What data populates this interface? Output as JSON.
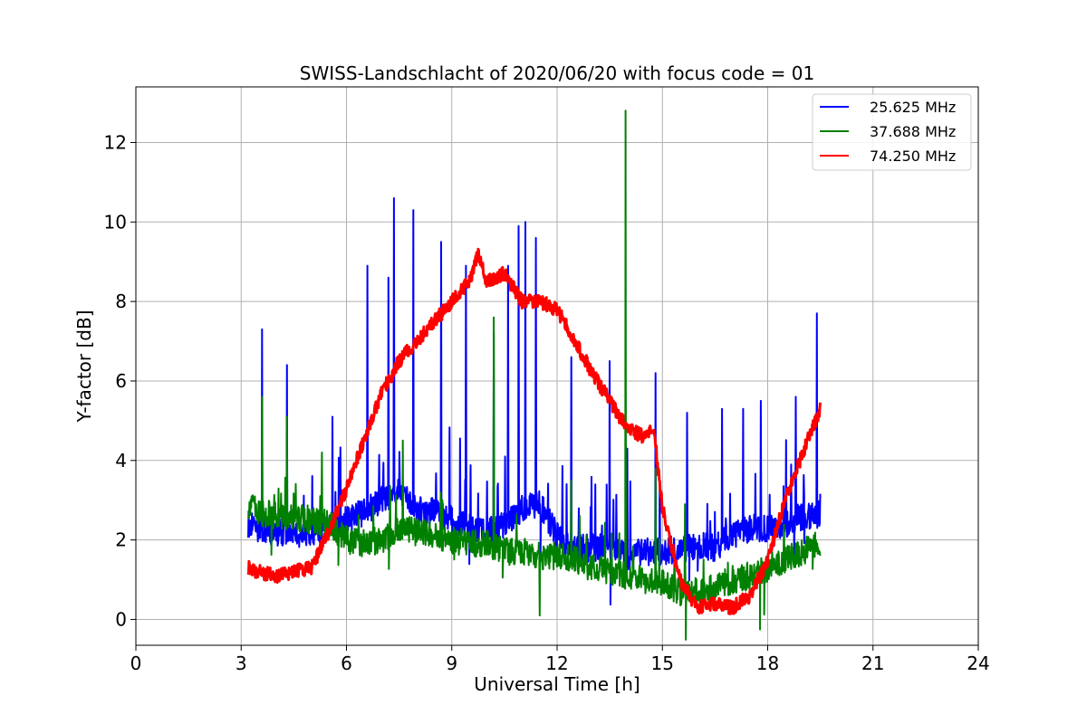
{
  "chart_data": {
    "type": "line",
    "title": "SWISS-Landschlacht of 2020/06/20 with focus code = 01",
    "xlabel": "Universal Time [h]",
    "ylabel": "Y-factor [dB]",
    "xlim": [
      0,
      24
    ],
    "ylim": [
      -0.65,
      13.4
    ],
    "xticks": [
      0,
      3,
      6,
      9,
      12,
      15,
      18,
      21,
      24
    ],
    "yticks": [
      0,
      2,
      4,
      6,
      8,
      10,
      12
    ],
    "grid": true,
    "legend_position": "top-right",
    "series": [
      {
        "name": "25.625 MHz",
        "color": "#0000ff",
        "x": [
          3.2,
          3.5,
          4.0,
          4.5,
          5.0,
          5.5,
          6.0,
          6.5,
          7.0,
          7.5,
          8.0,
          8.5,
          9.0,
          9.5,
          10.0,
          10.5,
          11.0,
          11.5,
          12.0,
          12.5,
          13.0,
          13.5,
          14.0,
          14.5,
          15.0,
          15.5,
          16.0,
          16.5,
          17.0,
          17.5,
          18.0,
          18.5,
          19.0,
          19.5
        ],
        "values": [
          2.4,
          2.3,
          2.2,
          2.2,
          2.1,
          2.3,
          2.5,
          2.7,
          3.0,
          3.2,
          2.8,
          2.7,
          2.5,
          2.3,
          2.2,
          2.4,
          2.8,
          2.9,
          2.1,
          1.8,
          1.8,
          1.8,
          1.6,
          1.7,
          1.7,
          1.7,
          1.9,
          1.8,
          2.1,
          2.3,
          2.3,
          2.4,
          2.6,
          2.5
        ],
        "spikes": [
          [
            3.6,
            7.3
          ],
          [
            4.3,
            6.4
          ],
          [
            5.6,
            5.1
          ],
          [
            6.6,
            8.9
          ],
          [
            7.2,
            8.6
          ],
          [
            7.35,
            10.6
          ],
          [
            7.9,
            10.3
          ],
          [
            8.7,
            9.5
          ],
          [
            9.4,
            8.9
          ],
          [
            10.2,
            7.2
          ],
          [
            10.6,
            8.9
          ],
          [
            10.9,
            9.9
          ],
          [
            11.1,
            10.0
          ],
          [
            11.4,
            9.6
          ],
          [
            12.4,
            6.6
          ],
          [
            13.5,
            6.5
          ],
          [
            14.0,
            4.3
          ],
          [
            14.8,
            6.2
          ],
          [
            15.7,
            5.2
          ],
          [
            16.7,
            5.3
          ],
          [
            17.3,
            5.3
          ],
          [
            17.8,
            5.5
          ],
          [
            18.8,
            5.6
          ],
          [
            19.4,
            7.7
          ]
        ]
      },
      {
        "name": "37.688 MHz",
        "color": "#008000",
        "x": [
          3.2,
          3.5,
          4.0,
          4.5,
          5.0,
          5.5,
          6.0,
          6.5,
          7.0,
          7.5,
          8.0,
          8.5,
          9.0,
          9.5,
          10.0,
          10.5,
          11.0,
          11.5,
          12.0,
          12.5,
          13.0,
          13.5,
          14.0,
          14.5,
          15.0,
          15.5,
          16.0,
          16.5,
          17.0,
          17.5,
          18.0,
          18.5,
          19.0,
          19.5
        ],
        "values": [
          2.9,
          2.7,
          2.6,
          2.6,
          2.5,
          2.4,
          2.0,
          1.9,
          2.0,
          2.3,
          2.2,
          2.1,
          2.0,
          1.9,
          1.9,
          1.7,
          1.7,
          1.6,
          1.6,
          1.5,
          1.3,
          1.2,
          1.1,
          1.0,
          0.9,
          0.7,
          0.7,
          0.8,
          1.0,
          1.1,
          1.3,
          1.5,
          1.7,
          1.9
        ],
        "spikes": [
          [
            3.6,
            5.6
          ],
          [
            4.3,
            5.1
          ],
          [
            5.3,
            4.2
          ],
          [
            7.6,
            4.5
          ],
          [
            10.2,
            7.6
          ],
          [
            11.5,
            0.1
          ],
          [
            12.4,
            3.5
          ],
          [
            13.95,
            12.8
          ],
          [
            14.8,
            3.8
          ],
          [
            15.65,
            2.9
          ]
        ]
      },
      {
        "name": "74.250 MHz",
        "color": "#ff0000",
        "x": [
          3.2,
          3.5,
          4.0,
          4.5,
          5.0,
          5.5,
          6.0,
          6.5,
          7.0,
          7.5,
          8.0,
          8.5,
          9.0,
          9.5,
          9.75,
          10.0,
          10.5,
          11.0,
          11.5,
          12.0,
          12.5,
          13.0,
          13.5,
          14.0,
          14.5,
          14.75,
          15.0,
          15.5,
          16.0,
          16.5,
          17.0,
          17.5,
          18.0,
          18.5,
          19.0,
          19.5
        ],
        "values": [
          1.3,
          1.2,
          1.1,
          1.2,
          1.3,
          2.2,
          3.3,
          4.5,
          5.7,
          6.5,
          7.0,
          7.5,
          8.0,
          8.5,
          9.2,
          8.5,
          8.7,
          8.0,
          8.0,
          7.8,
          7.0,
          6.2,
          5.5,
          4.8,
          4.6,
          4.8,
          2.8,
          1.0,
          0.3,
          0.4,
          0.3,
          0.6,
          1.5,
          3.0,
          4.2,
          5.3
        ],
        "spikes": []
      }
    ]
  }
}
